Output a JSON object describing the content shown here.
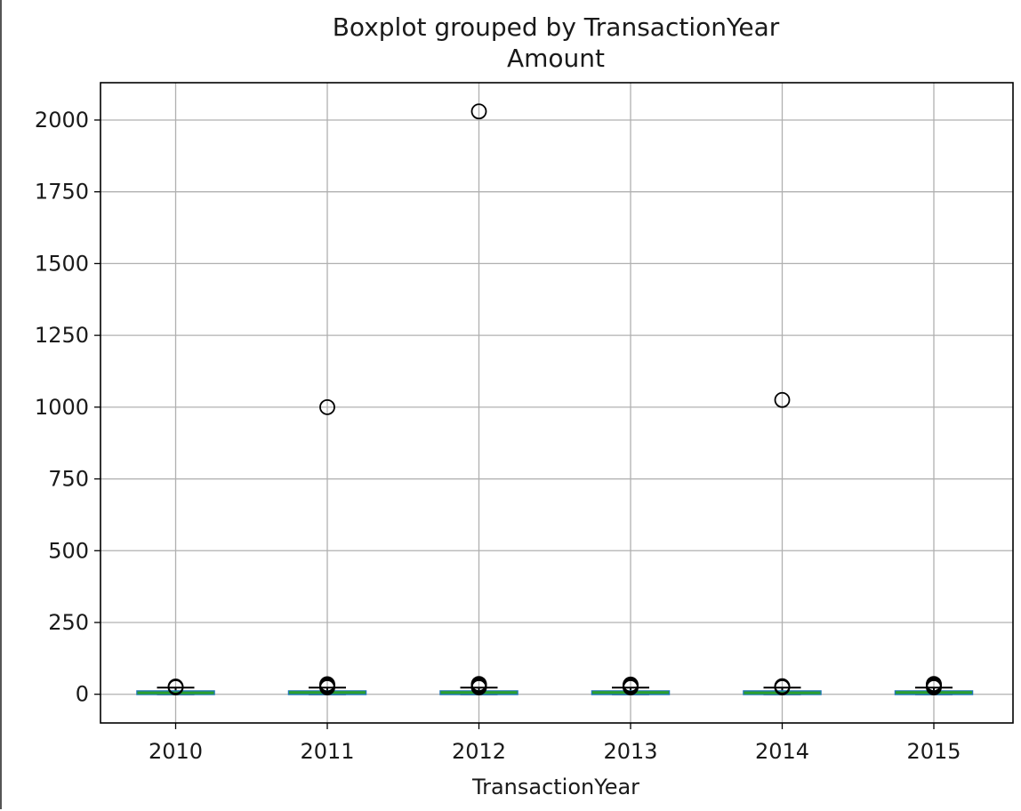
{
  "chart_data": {
    "type": "boxplot",
    "title": "Boxplot grouped by TransactionYear",
    "subtitle": "Amount",
    "xlabel": "TransactionYear",
    "ylabel": "",
    "categories": [
      "2010",
      "2011",
      "2012",
      "2013",
      "2014",
      "2015"
    ],
    "ylim": [
      -100,
      2130
    ],
    "yticks": [
      0,
      250,
      500,
      750,
      1000,
      1250,
      1500,
      1750,
      2000
    ],
    "grid": true,
    "boxes": [
      {
        "category": "2010",
        "whisker_low": 0,
        "q1": 3,
        "median": 5,
        "q3": 10,
        "whisker_high": 23,
        "outliers": [
          24,
          27
        ]
      },
      {
        "category": "2011",
        "whisker_low": 0,
        "q1": 3,
        "median": 6,
        "q3": 10,
        "whisker_high": 23,
        "outliers": [
          1000,
          24,
          26,
          28,
          30,
          32,
          35
        ]
      },
      {
        "category": "2012",
        "whisker_low": 0,
        "q1": 3,
        "median": 6,
        "q3": 10,
        "whisker_high": 23,
        "outliers": [
          2030,
          24,
          26,
          28,
          30,
          33,
          36
        ]
      },
      {
        "category": "2013",
        "whisker_low": 0,
        "q1": 3,
        "median": 6,
        "q3": 10,
        "whisker_high": 23,
        "outliers": [
          24,
          26,
          28,
          31,
          34
        ]
      },
      {
        "category": "2014",
        "whisker_low": 0,
        "q1": 3,
        "median": 5,
        "q3": 10,
        "whisker_high": 23,
        "outliers": [
          1025,
          24,
          26,
          28
        ]
      },
      {
        "category": "2015",
        "whisker_low": 0,
        "q1": 3,
        "median": 6,
        "q3": 10,
        "whisker_high": 23,
        "outliers": [
          24,
          27,
          30,
          33,
          36
        ]
      }
    ],
    "colors": {
      "box": "#1f77b4",
      "median": "#2ca02c",
      "whisker": "#000000",
      "outlier": "#000000",
      "grid": "#b0b0b0"
    }
  }
}
